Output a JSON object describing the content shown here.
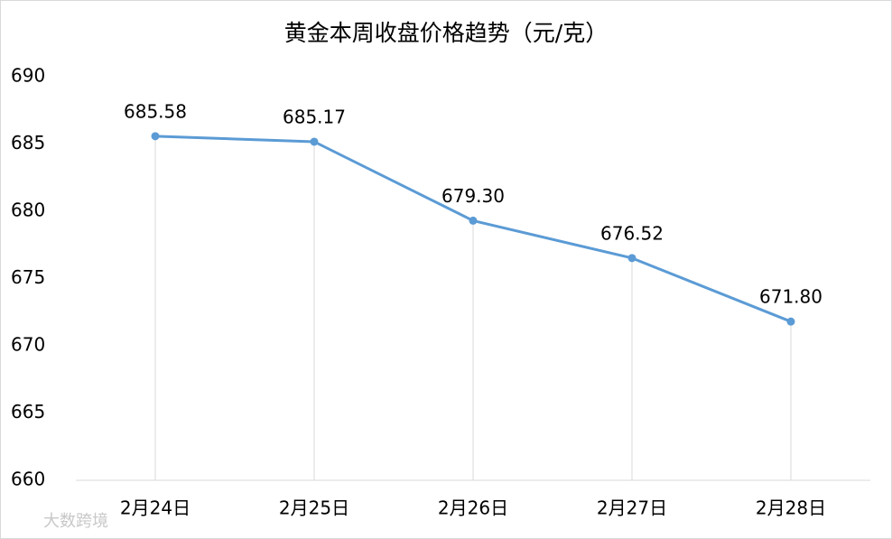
{
  "chart_data": {
    "type": "line",
    "title": "黄金本周收盘价格趋势（元/克）",
    "categories": [
      "2月24日",
      "2月25日",
      "2月26日",
      "2月27日",
      "2月28日"
    ],
    "values": [
      685.58,
      685.17,
      679.3,
      676.52,
      671.8
    ],
    "value_labels": [
      "685.58",
      "685.17",
      "679.30",
      "676.52",
      "671.80"
    ],
    "color": "#5b9bd5",
    "ylim": [
      660,
      690
    ],
    "yticks": [
      660,
      665,
      670,
      675,
      680,
      685,
      690
    ],
    "drop_lines": true,
    "watermark": "大数跨境"
  }
}
